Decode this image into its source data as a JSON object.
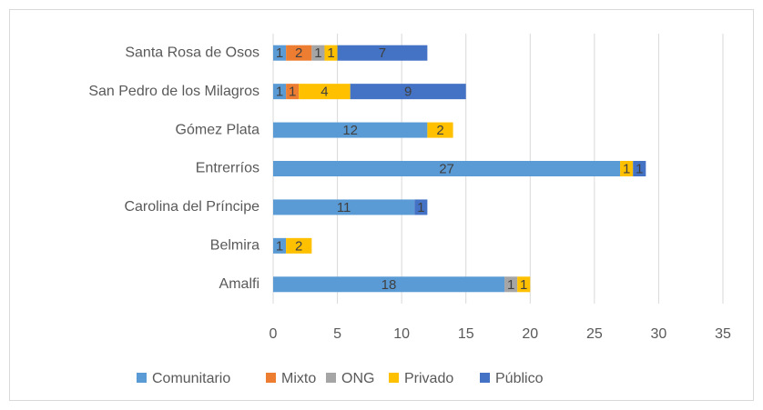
{
  "chart_data": {
    "type": "stacked_barh",
    "categories": [
      "Santa Rosa de Osos",
      "San Pedro de los Milagros",
      "Gómez Plata",
      "Entrerríos",
      "Carolina del Príncipe",
      "Belmira",
      "Amalfi"
    ],
    "series": [
      {
        "name": "Comunitario",
        "color": "#5b9bd5",
        "values": [
          1,
          1,
          12,
          27,
          11,
          1,
          18
        ]
      },
      {
        "name": "Mixto",
        "color": "#ed7d31",
        "values": [
          2,
          1,
          null,
          null,
          null,
          null,
          null
        ]
      },
      {
        "name": "ONG",
        "color": "#a5a5a5",
        "values": [
          1,
          null,
          null,
          null,
          null,
          null,
          1
        ]
      },
      {
        "name": "Privado",
        "color": "#ffc000",
        "values": [
          1,
          4,
          2,
          1,
          null,
          2,
          1
        ]
      },
      {
        "name": "Público",
        "color": "#4472c4",
        "values": [
          7,
          9,
          null,
          1,
          1,
          null,
          null
        ]
      }
    ],
    "xlim": [
      0,
      35
    ],
    "xticks": [
      0,
      5,
      10,
      15,
      20,
      25,
      30,
      35
    ],
    "grid": true,
    "legend": "bottom"
  }
}
